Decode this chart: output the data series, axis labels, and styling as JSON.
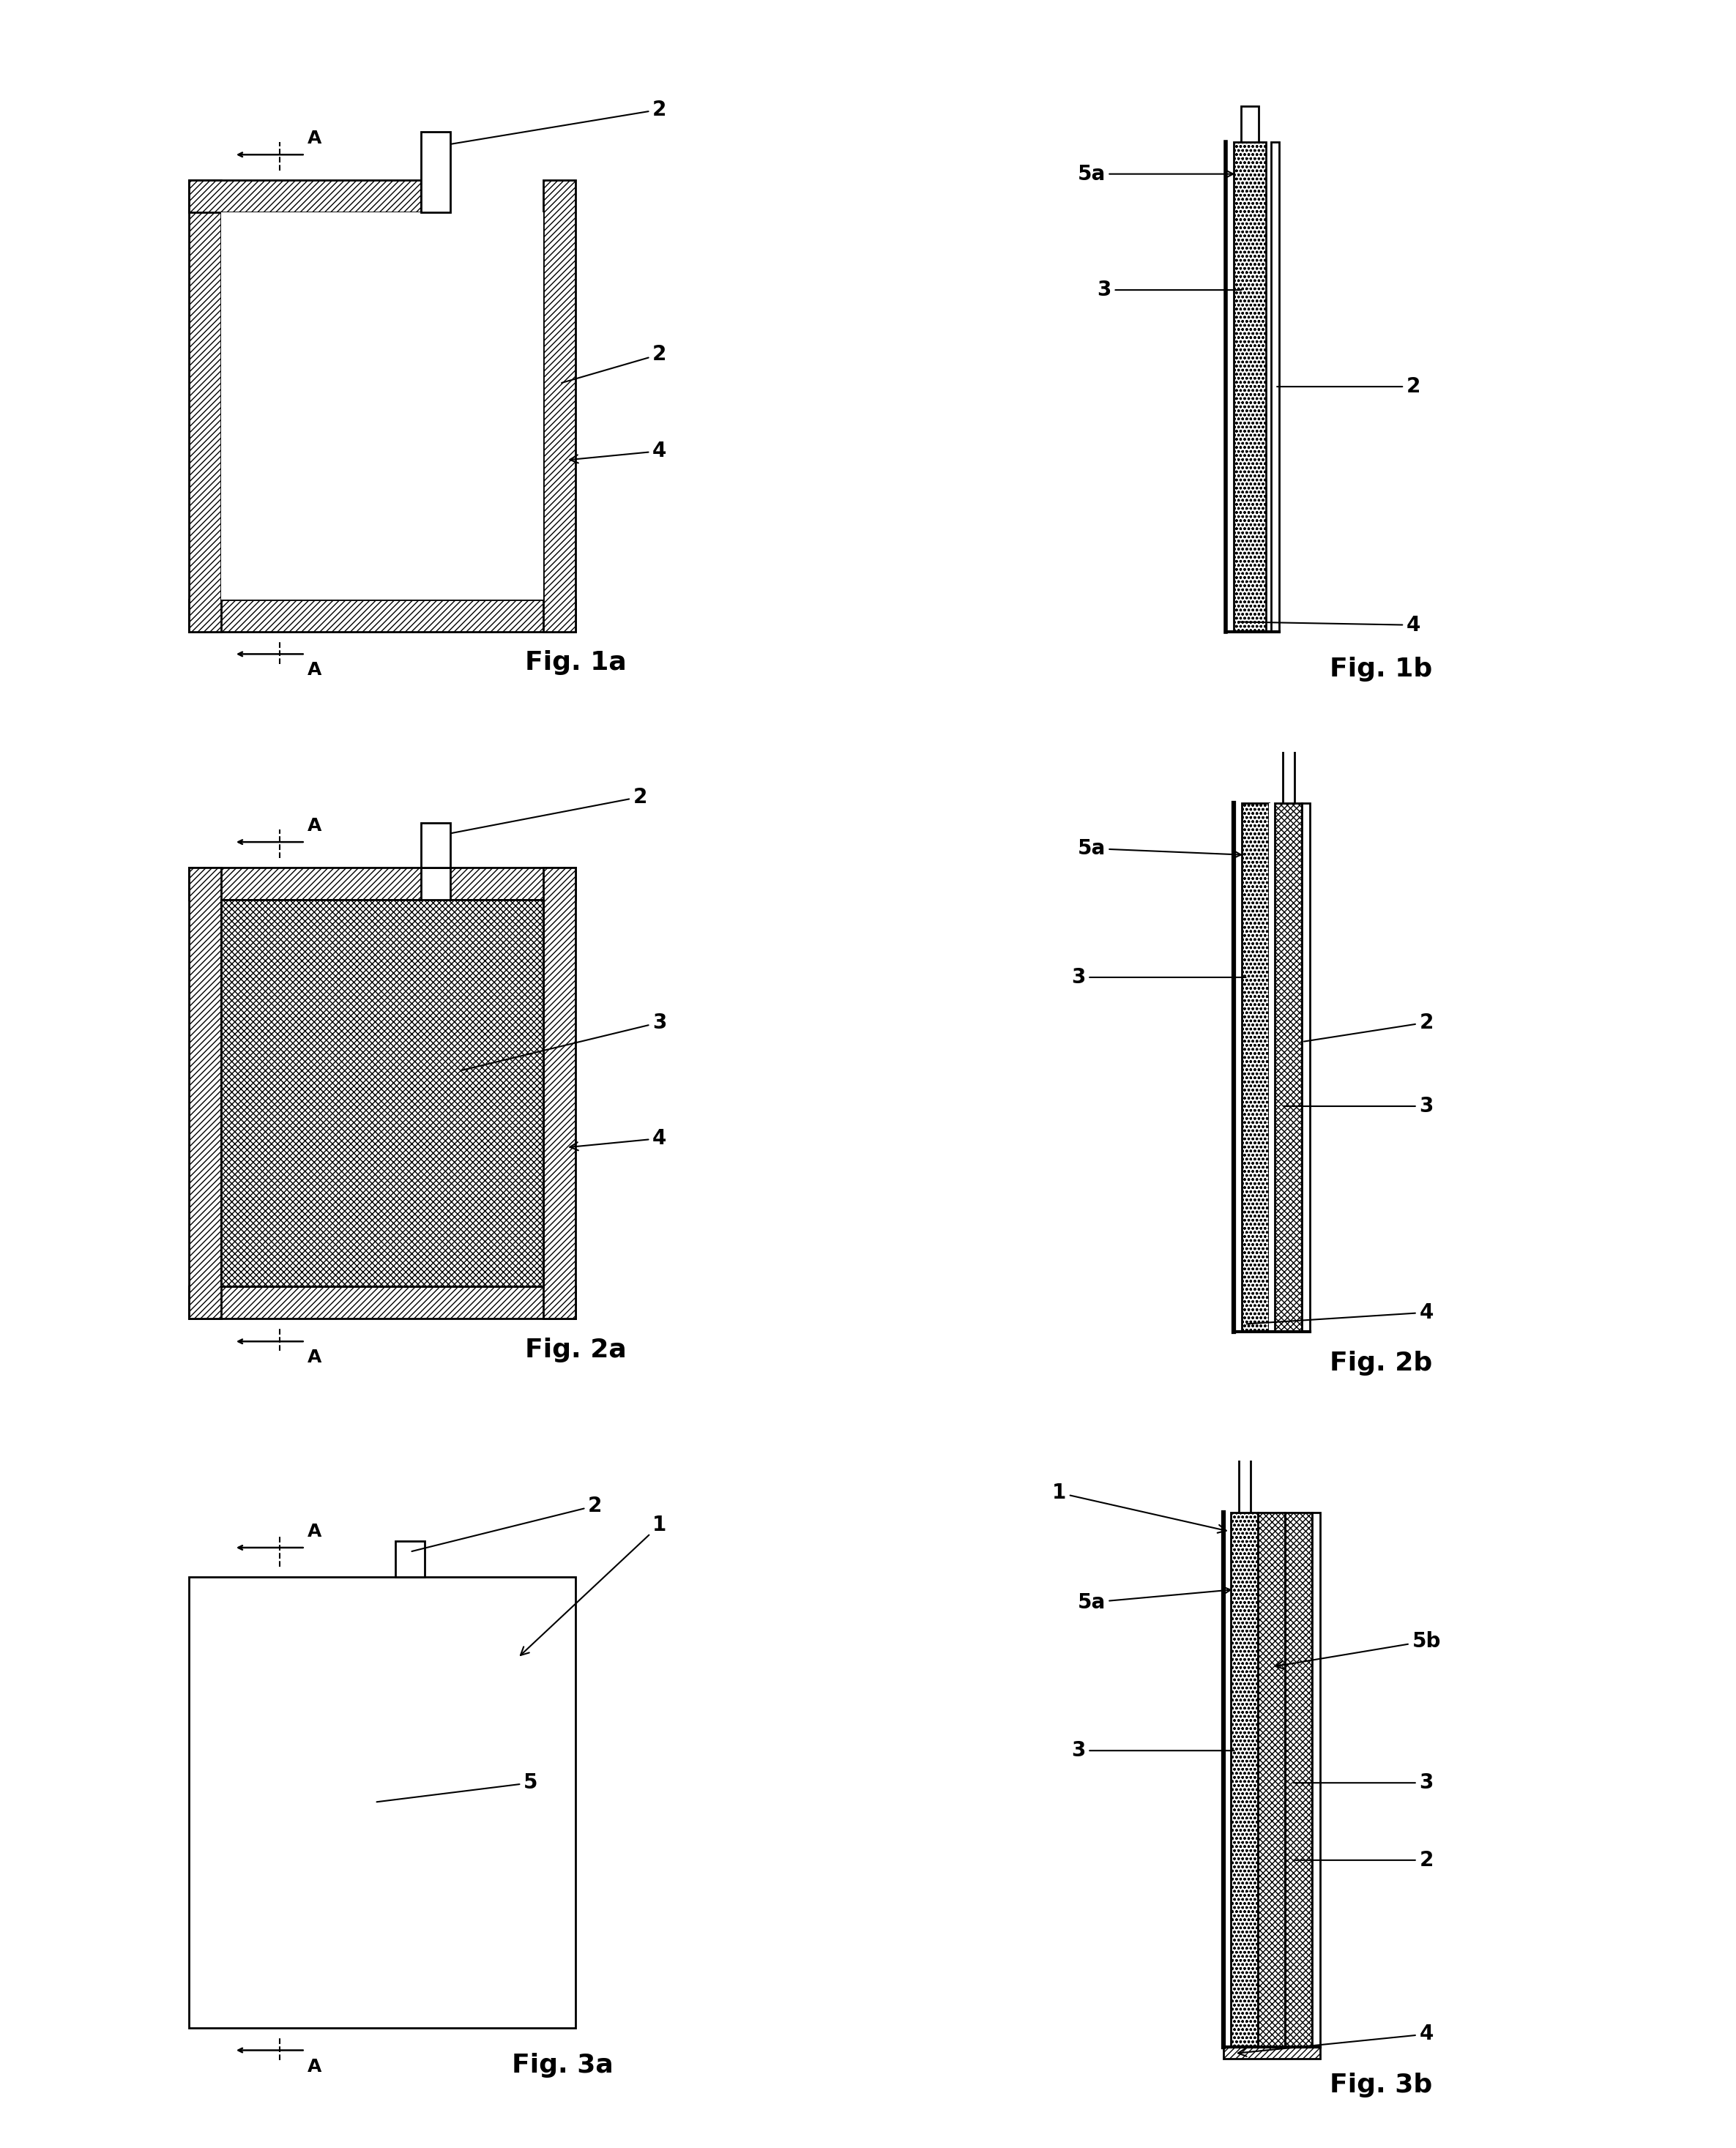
{
  "bg_color": "#ffffff",
  "line_color": "#000000",
  "fig_labels": [
    "Fig. 1a",
    "Fig. 1b",
    "Fig. 2a",
    "Fig. 2b",
    "Fig. 3a",
    "Fig. 3b"
  ],
  "fig_label_fontsize": 26,
  "annotation_fontsize": 20,
  "A_fontsize": 18
}
